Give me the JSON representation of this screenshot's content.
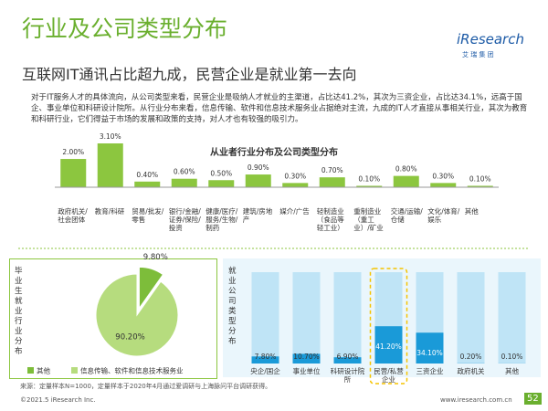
{
  "header": {
    "title": "行业及公司类型分布",
    "logo": "iResearch",
    "logo_sub": "艾 瑞 集 团"
  },
  "subtitle": "互联网IT通讯占比超九成，民营企业是就业第一去向",
  "paragraph": "对于IT服务人才的具体流向，从公司类型来看，民营企业是吸纳人才就业的主渠道，占比达41.2%，其次为三资企业，占比达34.1%，远高于国企、事业单位和科研设计院所。从行业分布来看，信息传输、软件和信息技术服务业占据绝对主流，九成的IT人才直接从事相关行业，其次为教育和科研行业，它们得益于市场的发展和政策的支持，对人才也有较强的吸引力。",
  "chart_data": [
    {
      "type": "bar",
      "title": "从业者行业分布及公司类型分布",
      "color": "#8cc63f",
      "categories": [
        "政府机关/社会团体",
        "教育/科研",
        "贸易/批发/零售",
        "银行/金融/证券/保险/投资",
        "健康/医疗/服务/生物/制药",
        "建筑/房地产",
        "媒介/广告",
        "轻制造业（食品等轻工业）",
        "重制造业（重工业）/矿业",
        "交通/运输/仓储",
        "文化/体育/娱乐",
        "其他"
      ],
      "values": [
        2,
        3.1,
        0.4,
        0.6,
        0.5,
        0.9,
        0.3,
        0.7,
        0.1,
        0.8,
        0.3,
        0.1
      ],
      "value_labels": [
        "2.00%",
        "3.10%",
        "0.40%",
        "0.60%",
        "0.50%",
        "0.90%",
        "0.30%",
        "0.70%",
        "0.10%",
        "0.80%",
        "0.30%",
        "0.10%"
      ]
    },
    {
      "type": "pie",
      "title": "毕业生就业行业分布",
      "categories": [
        "其他",
        "信息传输、软件和信息技术服务业"
      ],
      "values": [
        9.8,
        90.2
      ],
      "value_labels": [
        "9.80%",
        "90.20%"
      ],
      "colors": [
        "#7dbd3a",
        "#b6dc7e"
      ]
    },
    {
      "type": "bar",
      "title": "就业公司类型分布",
      "color": "#1a9ad8",
      "track_color": "#bfe4f6",
      "categories": [
        "央企/国企",
        "事业单位",
        "科研设计院所",
        "民营/私营企业",
        "三资企业",
        "政府机关",
        "其他"
      ],
      "values": [
        7.8,
        10.7,
        6.9,
        41.2,
        34.1,
        0.2,
        0.1
      ],
      "value_labels": [
        "7.80%",
        "10.70%",
        "6.90%",
        "41.20%",
        "34.10%",
        "0.20%",
        "0.10%"
      ],
      "highlight": "民营/私营企业"
    }
  ],
  "footer": {
    "source": "来源：定量样本N=1000，定量样本于2020年4月通过爱调研与上海脉问平台调研获得。",
    "copyright": "©2021.5 iResearch Inc.",
    "url": "www.iresearch.com.cn",
    "page": "52"
  }
}
